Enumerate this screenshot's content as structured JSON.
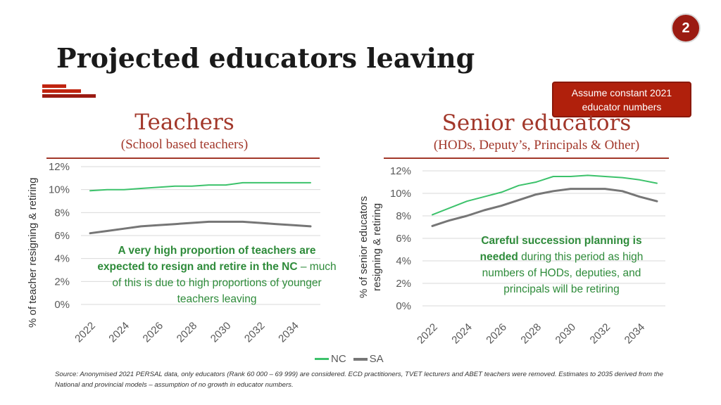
{
  "page": {
    "number": "2",
    "title": "Projected educators leaving"
  },
  "callout": {
    "line1": "Assume constant 2021",
    "line2": "educator numbers"
  },
  "accent_colors": {
    "dark_red": "#9b1b12",
    "title_red": "#a2372a",
    "nc_green": "#3cc26b",
    "sa_grey": "#767676",
    "note_green": "#2e8b3a"
  },
  "left_panel": {
    "title": "Teachers",
    "subtitle": "(School based teachers)",
    "ylabel": "% of teacher resigning & retiring",
    "note": {
      "part1": "A very high proportion of teachers are expected to resign and retire in the NC",
      "part2": " – much of this is due to high proportions of younger teachers leaving"
    }
  },
  "right_panel": {
    "title": "Senior educators",
    "subtitle": "(HODs, Deputy’s, Principals & Other)",
    "ylabel_line1": "% of senior educators",
    "ylabel_line2": "resigning & retiring",
    "note": {
      "part1": "Careful succession planning is needed",
      "part2": " during this period as high numbers of HODs, deputies, and principals will be retiring"
    }
  },
  "legend": {
    "nc": "NC",
    "sa": "SA"
  },
  "footnote": "Source: Anonymised 2021 PERSAL data, only educators (Rank 60 000 – 69 999) are considered. ECD practitioners, TVET lecturers and ABET teachers were removed. Estimates to 2035 derived from the National and provincial models – assumption of no growth in educator numbers.",
  "chart_data": [
    {
      "type": "line",
      "title": "Teachers",
      "ylabel": "% of teacher resigning & retiring",
      "x": [
        2022,
        2023,
        2024,
        2025,
        2026,
        2027,
        2028,
        2029,
        2030,
        2031,
        2032,
        2033,
        2034,
        2035
      ],
      "x_tick_labels": [
        "2022",
        "2024",
        "2026",
        "2028",
        "2030",
        "2032",
        "2034"
      ],
      "y_tick_labels": [
        "0%",
        "2%",
        "4%",
        "6%",
        "8%",
        "10%",
        "12%"
      ],
      "ylim": [
        0,
        12
      ],
      "grid": true,
      "series": [
        {
          "name": "NC",
          "color": "#3cc26b",
          "values": [
            9.9,
            10.0,
            10.0,
            10.1,
            10.2,
            10.3,
            10.3,
            10.4,
            10.4,
            10.6,
            10.6,
            10.6,
            10.6,
            10.6
          ]
        },
        {
          "name": "SA",
          "color": "#767676",
          "values": [
            6.2,
            6.4,
            6.6,
            6.8,
            6.9,
            7.0,
            7.1,
            7.2,
            7.2,
            7.2,
            7.1,
            7.0,
            6.9,
            6.8
          ]
        }
      ]
    },
    {
      "type": "line",
      "title": "Senior educators",
      "ylabel": "% of senior educators resigning & retiring",
      "x": [
        2022,
        2023,
        2024,
        2025,
        2026,
        2027,
        2028,
        2029,
        2030,
        2031,
        2032,
        2033,
        2034,
        2035
      ],
      "x_tick_labels": [
        "2022",
        "2024",
        "2026",
        "2028",
        "2030",
        "2032",
        "2034"
      ],
      "y_tick_labels": [
        "0%",
        "2%",
        "4%",
        "6%",
        "8%",
        "10%",
        "12%"
      ],
      "ylim": [
        0,
        12
      ],
      "grid": true,
      "series": [
        {
          "name": "NC",
          "color": "#3cc26b",
          "values": [
            8.1,
            8.7,
            9.3,
            9.7,
            10.1,
            10.7,
            11.0,
            11.5,
            11.5,
            11.6,
            11.5,
            11.4,
            11.2,
            10.9
          ]
        },
        {
          "name": "SA",
          "color": "#767676",
          "values": [
            7.1,
            7.6,
            8.0,
            8.5,
            8.9,
            9.4,
            9.9,
            10.2,
            10.4,
            10.4,
            10.4,
            10.2,
            9.7,
            9.3
          ]
        }
      ]
    }
  ]
}
